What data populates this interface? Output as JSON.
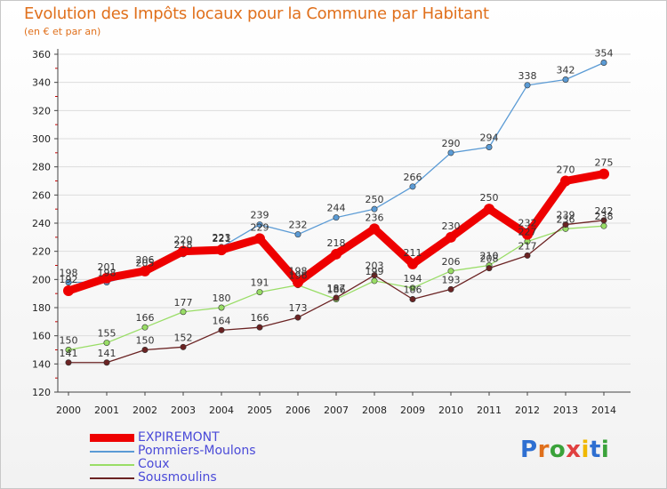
{
  "header": {
    "title": "Evolution des Impôts locaux pour la Commune par Habitant",
    "subtitle": "(en € et par an)"
  },
  "colors": {
    "title": "#e0701c",
    "legend_text": "#4a4ad8",
    "axis": "#444444",
    "minor_tick": "#cc0000"
  },
  "logo": {
    "text": "Proxiti",
    "letter_colors": [
      "#2e6fd1",
      "#e0701c",
      "#3aa23a",
      "#e04040",
      "#f0b800",
      "#2e6fd1",
      "#3aa23a"
    ]
  },
  "chart_data": {
    "type": "line",
    "title": "Evolution des Impôts locaux pour la Commune par Habitant",
    "subtitle": "(en € et par an)",
    "x": [
      2000,
      2001,
      2002,
      2003,
      2004,
      2005,
      2006,
      2007,
      2008,
      2009,
      2010,
      2011,
      2012,
      2013,
      2014
    ],
    "ylim": [
      120,
      360
    ],
    "yticks": [
      120,
      140,
      160,
      180,
      200,
      220,
      240,
      260,
      280,
      300,
      320,
      340,
      360
    ],
    "grid": "horizontal",
    "legend_position": "bottom-left",
    "series": [
      {
        "name": "EXPIREMONT",
        "color": "#ee0000",
        "values": [
          192,
          201,
          206,
          220,
          221,
          229,
          198,
          218,
          236,
          211,
          230,
          250,
          232,
          270,
          275
        ]
      },
      {
        "name": "Pommiers-Moulons",
        "color": "#5b9bd5",
        "values": [
          198,
          198,
          205,
          218,
          223,
          239,
          232,
          244,
          250,
          266,
          290,
          294,
          338,
          342,
          354
        ]
      },
      {
        "name": "Coux",
        "color": "#99dd66",
        "values": [
          150,
          155,
          166,
          177,
          180,
          191,
          196,
          186,
          199,
          194,
          206,
          210,
          227,
          236,
          238
        ]
      },
      {
        "name": "Sousmoulins",
        "color": "#6b2323",
        "values": [
          141,
          141,
          150,
          152,
          164,
          166,
          173,
          187,
          203,
          186,
          193,
          208,
          217,
          239,
          242
        ]
      }
    ]
  }
}
